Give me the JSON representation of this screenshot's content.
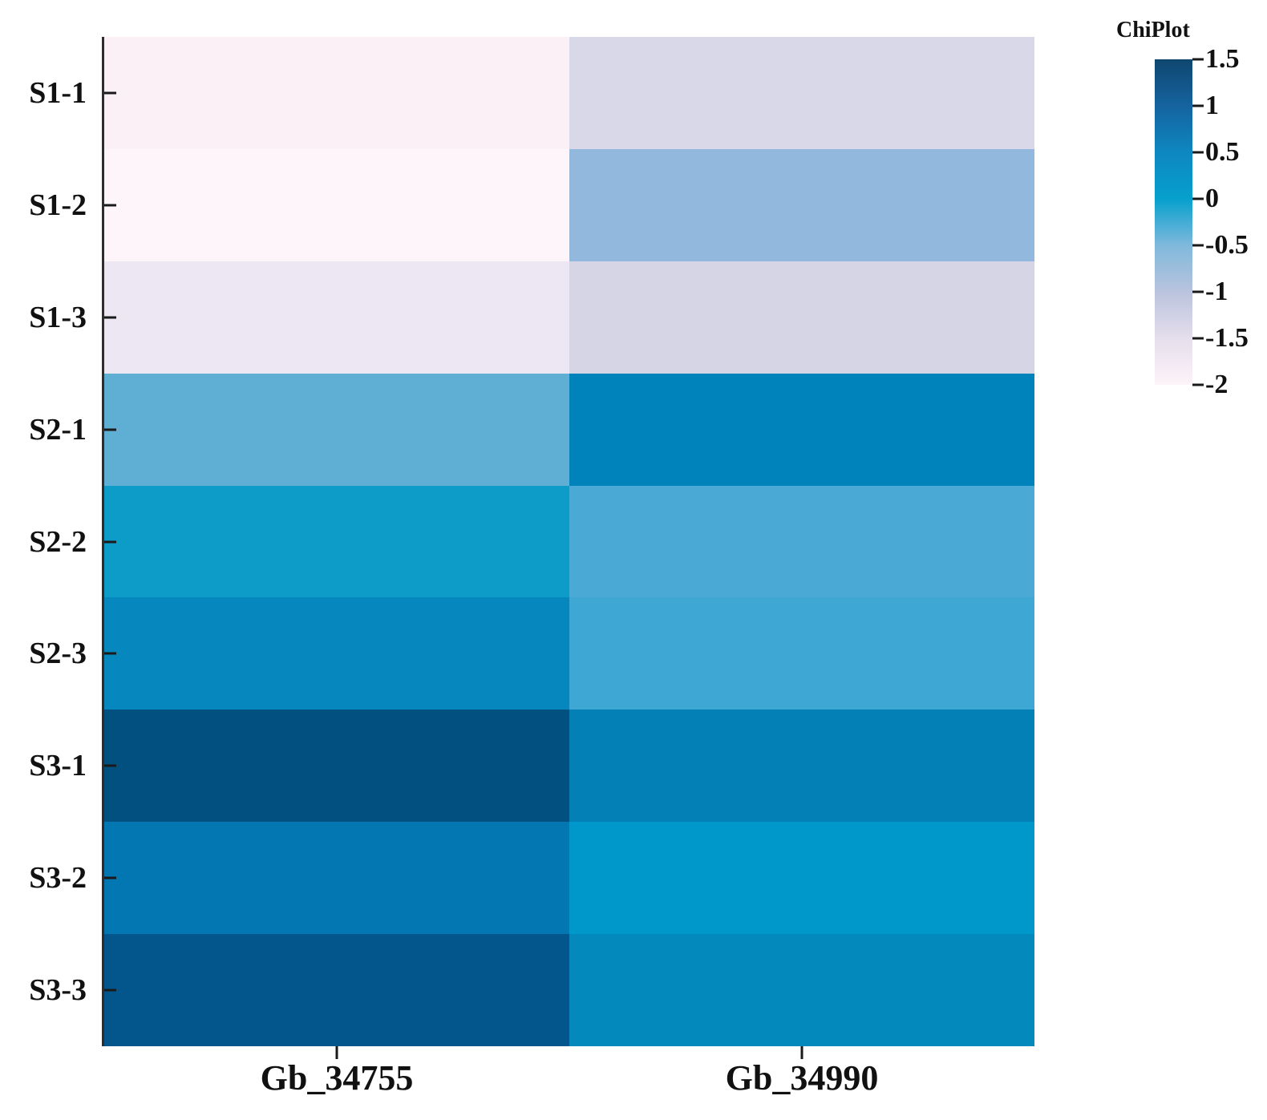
{
  "legend": {
    "title": "ChiPlot",
    "ticks": [
      "1.5",
      "1",
      "0.5",
      "0",
      "-0.5",
      "-1",
      "-1.5",
      "-2"
    ],
    "gradient_stops": [
      "#0f466f",
      "#15639f",
      "#0e87c0",
      "#06a0cd",
      "#7fb9dc",
      "#bac3dd",
      "#e5deec",
      "#fdf4f9"
    ]
  },
  "chart_data": {
    "type": "heatmap",
    "title": "",
    "legend_title": "ChiPlot",
    "rows": [
      "S1-1",
      "S1-2",
      "S1-3",
      "S2-1",
      "S2-2",
      "S2-3",
      "S3-1",
      "S3-2",
      "S3-3"
    ],
    "columns": [
      "Gb_34755",
      "Gb_34990"
    ],
    "series": [
      {
        "name": "Gb_34755",
        "values": [
          -1.9,
          -2.0,
          -1.5,
          -0.4,
          0.0,
          0.5,
          1.4,
          0.7,
          1.3
        ]
      },
      {
        "name": "Gb_34990",
        "values": [
          -1.3,
          -0.7,
          -1.25,
          0.6,
          -0.3,
          -0.25,
          0.6,
          0.1,
          0.45
        ]
      }
    ],
    "cell_colors": [
      [
        "#faf0f5",
        "#d9d8e8"
      ],
      [
        "#fdf5fa",
        "#92b9dd"
      ],
      [
        "#ece7f2",
        "#d6d5e6"
      ],
      [
        "#5faed4",
        "#0082ba"
      ],
      [
        "#0d9bc8",
        "#4ba9d6"
      ],
      [
        "#0688be",
        "#3ea7d4"
      ],
      [
        "#02507f",
        "#0380b6"
      ],
      [
        "#0277b2",
        "#0097ca"
      ],
      [
        "#02568c",
        "#0489bd"
      ]
    ],
    "colorbar": {
      "title": "ChiPlot",
      "min": -2,
      "max": 1.5,
      "tick_values": [
        1.5,
        1,
        0.5,
        0,
        -0.5,
        -1,
        -1.5,
        -2
      ],
      "position": "right"
    },
    "grid": false,
    "axis_note": "values estimated from colorbar; cells colored exactly as sampled"
  }
}
